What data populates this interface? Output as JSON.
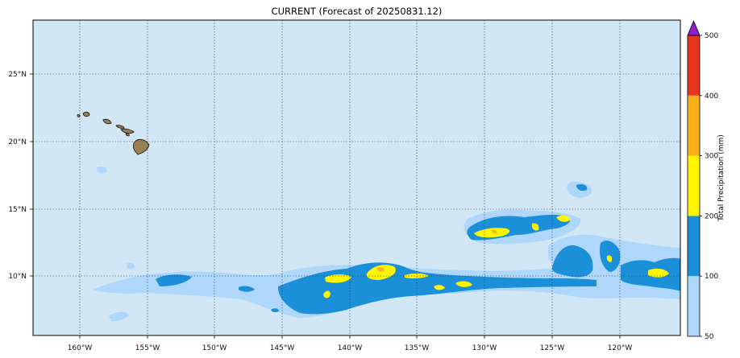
{
  "title": "CURRENT (Forecast of 20250831.12)",
  "colors": {
    "ocean": "#d2e7f5",
    "band_50_100": "#afd6fb",
    "band_100_200": "#1b8fd8",
    "band_200_300": "#fff500",
    "band_300_400": "#fbb21a",
    "band_400_500": "#e8361f",
    "over_500": "#8e1fd1",
    "land": "#9a8155"
  },
  "longitude_ticks": [
    "160°W",
    "155°W",
    "150°W",
    "145°W",
    "140°W",
    "135°W",
    "130°W",
    "125°W",
    "120°W"
  ],
  "latitude_ticks": [
    "25°N",
    "20°N",
    "15°N",
    "10°N"
  ],
  "colorbar": {
    "label": "Total Precipitation (mm)",
    "ticks": [
      "50",
      "100",
      "200",
      "300",
      "400",
      "500"
    ],
    "extend": "max"
  },
  "gridlines": true
}
